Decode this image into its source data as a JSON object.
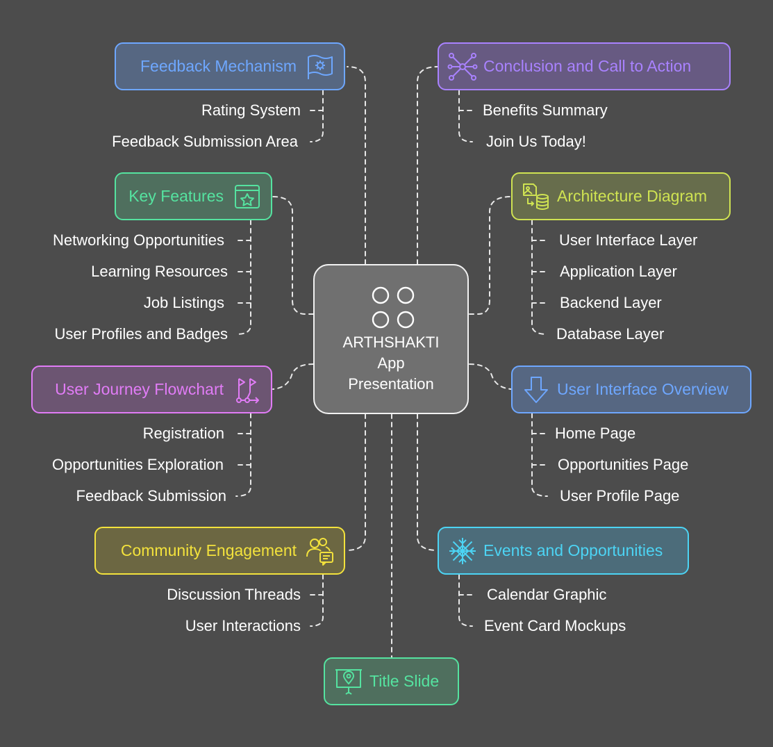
{
  "center": {
    "title": "ARTHSHAKTI\nApp\nPresentation",
    "icon": "four-circles-icon"
  },
  "nodes": {
    "feedback": {
      "title": "Feedback Mechanism",
      "icon": "gear-flag-icon",
      "color": "#6ea7ff",
      "fill": "#566782",
      "items": [
        "Rating System",
        "Feedback Submission Area"
      ]
    },
    "key_features": {
      "title": "Key Features",
      "icon": "star-window-icon",
      "color": "#55e3a0",
      "fill": "#4f6f5e",
      "items": [
        "Networking Opportunities",
        "Learning Resources",
        "Job Listings",
        "User Profiles and Badges"
      ]
    },
    "user_journey": {
      "title": "User Journey Flowchart",
      "icon": "flow-flags-icon",
      "color": "#e17cf6",
      "fill": "#6c5572",
      "items": [
        "Registration",
        "Opportunities Exploration",
        "Feedback Submission"
      ]
    },
    "community": {
      "title": "Community Engagement",
      "icon": "users-chat-icon",
      "color": "#f3e23c",
      "fill": "#6c6742",
      "items": [
        "Discussion Threads",
        "User Interactions"
      ]
    },
    "title_slide": {
      "title": "Title Slide",
      "icon": "presentation-board-icon",
      "color": "#55e3a0",
      "fill": "#4f6f5e",
      "items": []
    },
    "conclusion": {
      "title": "Conclusion and Call to Action",
      "icon": "network-nodes-icon",
      "color": "#a982ff",
      "fill": "#675a82",
      "items": [
        "Benefits Summary",
        "Join Us Today!"
      ]
    },
    "architecture": {
      "title": "Architecture Diagram",
      "icon": "image-database-icon",
      "color": "#cfe352",
      "fill": "#676d4c",
      "items": [
        "User Interface Layer",
        "Application Layer",
        "Backend Layer",
        "Database Layer"
      ]
    },
    "ui_overview": {
      "title": "User Interface Overview",
      "icon": "arrow-down-icon",
      "color": "#6ea7ff",
      "fill": "#566782",
      "items": [
        "Home Page",
        "Opportunities Page",
        "User Profile Page"
      ]
    },
    "events": {
      "title": "Events and Opportunities",
      "icon": "snowflake-icon",
      "color": "#4cd4f4",
      "fill": "#4c6c7a",
      "items": [
        "Calendar Graphic",
        "Event Card Mockups"
      ]
    }
  }
}
